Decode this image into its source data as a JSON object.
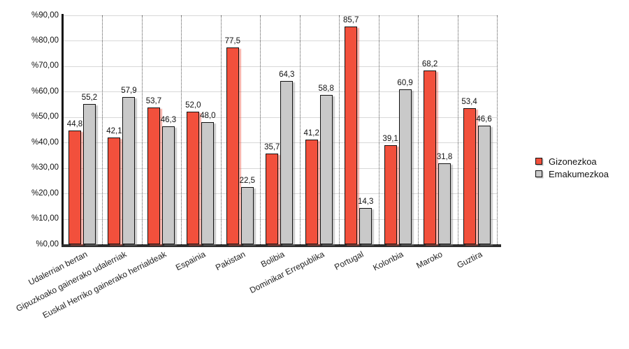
{
  "chart_data": {
    "type": "bar",
    "title": "",
    "xlabel": "",
    "ylabel": "",
    "categories": [
      "Udalerrian bertan",
      "Gipuzkoako gainerako udalerriak",
      "Euskal Herriko gainerako herrialdeak",
      "Espainia",
      "Pakistan",
      "Bolibia",
      "Dominikar Errepublika",
      "Portugal",
      "Kolonbia",
      "Maroko",
      "Guztira"
    ],
    "series": [
      {
        "name": "Gizonezkoa",
        "color": "#f2503c",
        "values": [
          44.8,
          42.1,
          53.7,
          52.0,
          77.5,
          35.7,
          41.2,
          85.7,
          39.1,
          68.2,
          53.4
        ]
      },
      {
        "name": "Emakumezkoa",
        "color": "#c9c9c9",
        "values": [
          55.2,
          57.9,
          46.3,
          48.0,
          22.5,
          64.3,
          58.8,
          14.3,
          60.9,
          31.8,
          46.6
        ]
      }
    ],
    "ylim": [
      0,
      90
    ],
    "ytick_step": 10,
    "ytick_labels": [
      "%90,00",
      "%80,00",
      "%70,00",
      "%60,00",
      "%50,00",
      "%40,00",
      "%30,00",
      "%20,00",
      "%10,00",
      "%0,00"
    ],
    "value_label_decimal_separator": ",",
    "grid": {
      "horizontal": "solid",
      "vertical": "dotted category separators"
    },
    "legend_position": "right"
  },
  "legend": {
    "items": [
      {
        "label": "Gizonezkoa",
        "color": "#f2503c"
      },
      {
        "label": "Emakumezkoa",
        "color": "#c9c9c9"
      }
    ]
  }
}
